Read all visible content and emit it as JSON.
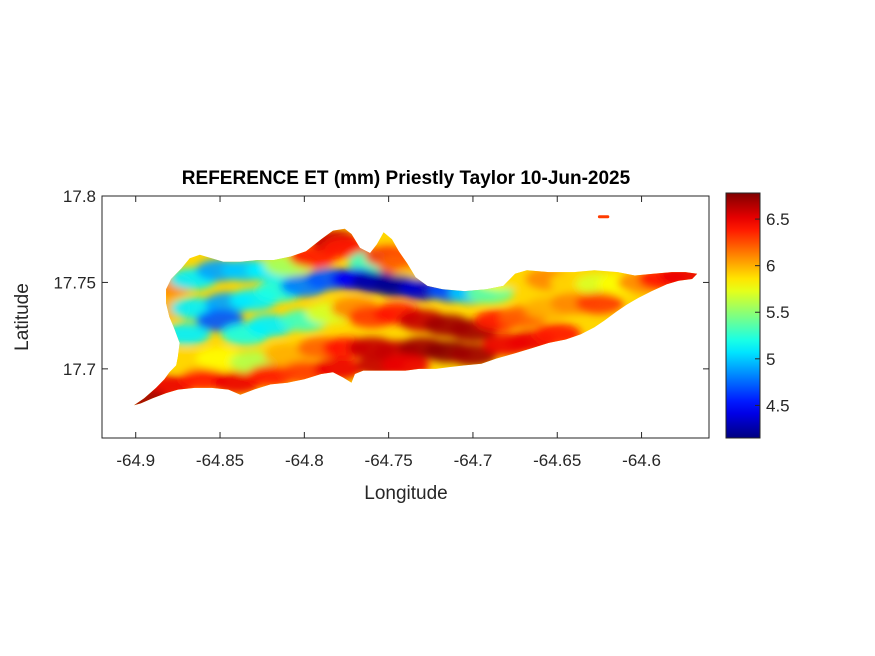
{
  "chart_data": {
    "type": "heatmap",
    "title": "REFERENCE ET (mm) Priestly Taylor 10-Jun-2025",
    "xlabel": "Longitude",
    "ylabel": "Latitude",
    "xlim": [
      -64.92,
      -64.56
    ],
    "ylim": [
      17.66,
      17.8
    ],
    "xticks": [
      -64.9,
      -64.85,
      -64.8,
      -64.75,
      -64.7,
      -64.65,
      -64.6
    ],
    "xtick_labels": [
      "-64.9",
      "-64.85",
      "-64.8",
      "-64.75",
      "-64.7",
      "-64.65",
      "-64.6"
    ],
    "yticks": [
      17.7,
      17.75,
      17.8
    ],
    "ytick_labels": [
      "17.7",
      "17.75",
      "17.8"
    ],
    "colorbar": {
      "colormap": "jet",
      "range": [
        4.15,
        6.78
      ],
      "ticks": [
        4.5,
        5,
        5.5,
        6,
        6.5
      ],
      "tick_labels": [
        "4.5",
        "5",
        "5.5",
        "6",
        "6.5"
      ]
    },
    "grid": false,
    "island_outline": [
      [
        -64.901,
        17.679
      ],
      [
        -64.895,
        17.683
      ],
      [
        -64.888,
        17.689
      ],
      [
        -64.883,
        17.694
      ],
      [
        -64.88,
        17.698
      ],
      [
        -64.876,
        17.702
      ],
      [
        -64.875,
        17.707
      ],
      [
        -64.874,
        17.715
      ],
      [
        -64.877,
        17.723
      ],
      [
        -64.88,
        17.73
      ],
      [
        -64.882,
        17.738
      ],
      [
        -64.882,
        17.746
      ],
      [
        -64.879,
        17.752
      ],
      [
        -64.873,
        17.758
      ],
      [
        -64.868,
        17.764
      ],
      [
        -64.862,
        17.766
      ],
      [
        -64.855,
        17.764
      ],
      [
        -64.848,
        17.762
      ],
      [
        -64.838,
        17.762
      ],
      [
        -64.828,
        17.763
      ],
      [
        -64.818,
        17.763
      ],
      [
        -64.808,
        17.765
      ],
      [
        -64.799,
        17.768
      ],
      [
        -64.79,
        17.775
      ],
      [
        -64.783,
        17.78
      ],
      [
        -64.776,
        17.781
      ],
      [
        -64.772,
        17.778
      ],
      [
        -64.767,
        17.77
      ],
      [
        -64.761,
        17.767
      ],
      [
        -64.757,
        17.772
      ],
      [
        -64.753,
        17.779
      ],
      [
        -64.748,
        17.775
      ],
      [
        -64.744,
        17.768
      ],
      [
        -64.739,
        17.761
      ],
      [
        -64.734,
        17.753
      ],
      [
        -64.727,
        17.748
      ],
      [
        -64.718,
        17.746
      ],
      [
        -64.705,
        17.745
      ],
      [
        -64.692,
        17.746
      ],
      [
        -64.682,
        17.748
      ],
      [
        -64.675,
        17.755
      ],
      [
        -64.668,
        17.757
      ],
      [
        -64.655,
        17.756
      ],
      [
        -64.64,
        17.756
      ],
      [
        -64.628,
        17.757
      ],
      [
        -64.614,
        17.756
      ],
      [
        -64.604,
        17.754
      ],
      [
        -64.593,
        17.755
      ],
      [
        -64.582,
        17.756
      ],
      [
        -64.574,
        17.756
      ],
      [
        -64.567,
        17.755
      ],
      [
        -64.57,
        17.752
      ],
      [
        -64.578,
        17.751
      ],
      [
        -64.585,
        17.749
      ],
      [
        -64.594,
        17.745
      ],
      [
        -64.602,
        17.741
      ],
      [
        -64.609,
        17.737
      ],
      [
        -64.615,
        17.733
      ],
      [
        -64.622,
        17.728
      ],
      [
        -64.628,
        17.724
      ],
      [
        -64.636,
        17.72
      ],
      [
        -64.645,
        17.717
      ],
      [
        -64.655,
        17.715
      ],
      [
        -64.665,
        17.712
      ],
      [
        -64.675,
        17.709
      ],
      [
        -64.686,
        17.706
      ],
      [
        -64.695,
        17.703
      ],
      [
        -64.705,
        17.702
      ],
      [
        -64.714,
        17.701
      ],
      [
        -64.722,
        17.7
      ],
      [
        -64.732,
        17.7
      ],
      [
        -64.74,
        17.699
      ],
      [
        -64.749,
        17.699
      ],
      [
        -64.757,
        17.699
      ],
      [
        -64.765,
        17.699
      ],
      [
        -64.77,
        17.697
      ],
      [
        -64.772,
        17.692
      ],
      [
        -64.777,
        17.695
      ],
      [
        -64.783,
        17.698
      ],
      [
        -64.79,
        17.697
      ],
      [
        -64.8,
        17.694
      ],
      [
        -64.81,
        17.692
      ],
      [
        -64.82,
        17.691
      ],
      [
        -64.83,
        17.688
      ],
      [
        -64.838,
        17.685
      ],
      [
        -64.845,
        17.688
      ],
      [
        -64.855,
        17.689
      ],
      [
        -64.865,
        17.689
      ],
      [
        -64.875,
        17.688
      ],
      [
        -64.882,
        17.686
      ],
      [
        -64.89,
        17.683
      ],
      [
        -64.897,
        17.68
      ]
    ],
    "islet": [
      [
        -64.625,
        17.788
      ],
      [
        -64.62,
        17.788
      ]
    ],
    "values": [
      [
        -64.88,
        17.748,
        6.1
      ],
      [
        -64.883,
        17.735,
        6.0
      ],
      [
        -64.866,
        17.752,
        5.1
      ],
      [
        -64.85,
        17.757,
        4.9
      ],
      [
        -64.835,
        17.757,
        5.0
      ],
      [
        -64.82,
        17.757,
        5.1
      ],
      [
        -64.81,
        17.76,
        5.6
      ],
      [
        -64.795,
        17.765,
        6.4
      ],
      [
        -64.782,
        17.774,
        6.6
      ],
      [
        -64.775,
        17.77,
        6.4
      ],
      [
        -64.76,
        17.762,
        5.3
      ],
      [
        -64.75,
        17.765,
        6.3
      ],
      [
        -64.742,
        17.76,
        6.2
      ],
      [
        -64.735,
        17.752,
        5.9
      ],
      [
        -64.865,
        17.735,
        5.1
      ],
      [
        -64.845,
        17.738,
        4.9
      ],
      [
        -64.83,
        17.74,
        5.1
      ],
      [
        -64.815,
        17.745,
        5.2
      ],
      [
        -64.8,
        17.748,
        4.8
      ],
      [
        -64.785,
        17.752,
        4.7
      ],
      [
        -64.77,
        17.752,
        4.45
      ],
      [
        -64.758,
        17.75,
        4.25
      ],
      [
        -64.745,
        17.748,
        4.2
      ],
      [
        -64.73,
        17.746,
        4.35
      ],
      [
        -64.712,
        17.745,
        4.7
      ],
      [
        -64.7,
        17.744,
        5.0
      ],
      [
        -64.69,
        17.744,
        5.4
      ],
      [
        -64.685,
        17.752,
        5.8
      ],
      [
        -64.67,
        17.752,
        5.9
      ],
      [
        -64.655,
        17.752,
        6.1
      ],
      [
        -64.64,
        17.75,
        5.9
      ],
      [
        -64.625,
        17.749,
        5.7
      ],
      [
        -64.612,
        17.749,
        5.8
      ],
      [
        -64.6,
        17.75,
        6.1
      ],
      [
        -64.588,
        17.752,
        6.4
      ],
      [
        -64.575,
        17.754,
        6.5
      ],
      [
        -64.87,
        17.72,
        5.1
      ],
      [
        -64.85,
        17.728,
        4.7
      ],
      [
        -64.835,
        17.72,
        5.2
      ],
      [
        -64.82,
        17.725,
        5.1
      ],
      [
        -64.8,
        17.728,
        5.3
      ],
      [
        -64.785,
        17.732,
        5.7
      ],
      [
        -64.77,
        17.735,
        6.1
      ],
      [
        -64.76,
        17.73,
        6.3
      ],
      [
        -64.745,
        17.732,
        6.4
      ],
      [
        -64.73,
        17.728,
        6.6
      ],
      [
        -64.715,
        17.725,
        6.7
      ],
      [
        -64.7,
        17.722,
        6.7
      ],
      [
        -64.685,
        17.728,
        6.4
      ],
      [
        -64.67,
        17.73,
        6.2
      ],
      [
        -64.655,
        17.735,
        6.0
      ],
      [
        -64.64,
        17.738,
        6.1
      ],
      [
        -64.625,
        17.738,
        6.3
      ],
      [
        -64.87,
        17.705,
        5.9
      ],
      [
        -64.85,
        17.706,
        5.8
      ],
      [
        -64.83,
        17.704,
        5.6
      ],
      [
        -64.81,
        17.708,
        6.0
      ],
      [
        -64.79,
        17.712,
        6.2
      ],
      [
        -64.775,
        17.712,
        6.4
      ],
      [
        -64.76,
        17.712,
        6.6
      ],
      [
        -64.745,
        17.71,
        6.6
      ],
      [
        -64.73,
        17.712,
        6.7
      ],
      [
        -64.715,
        17.71,
        6.75
      ],
      [
        -64.7,
        17.708,
        6.7
      ],
      [
        -64.68,
        17.714,
        6.5
      ],
      [
        -64.665,
        17.716,
        6.5
      ],
      [
        -64.65,
        17.72,
        6.4
      ],
      [
        -64.88,
        17.69,
        6.5
      ],
      [
        -64.86,
        17.694,
        6.4
      ],
      [
        -64.84,
        17.692,
        6.5
      ],
      [
        -64.82,
        17.696,
        6.4
      ],
      [
        -64.8,
        17.698,
        6.3
      ],
      [
        -64.78,
        17.7,
        6.5
      ],
      [
        -64.895,
        17.682,
        6.7
      ],
      [
        -64.755,
        17.702,
        6.6
      ],
      [
        -64.74,
        17.702,
        6.5
      ]
    ]
  }
}
